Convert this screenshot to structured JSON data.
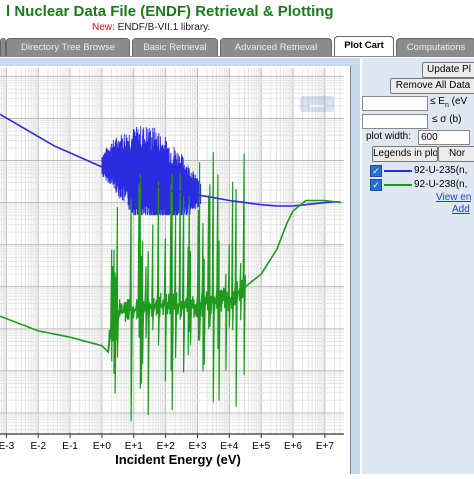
{
  "header": {
    "title": "l Nuclear Data File (ENDF) Retrieval & Plotting",
    "new_label": "New:",
    "library_text": "ENDF/B-VII.1 library."
  },
  "tabs": [
    {
      "label": "Directory Tree Browse",
      "active": false
    },
    {
      "label": "Basic Retrieval",
      "active": false
    },
    {
      "label": "Advanced Retrieval",
      "active": false
    },
    {
      "label": "Plot Cart",
      "active": true
    },
    {
      "label": "Computations",
      "active": false
    }
  ],
  "sidebar": {
    "update_button": "Update Pl",
    "remove_button": "Remove All Data",
    "energy_label": "≤ E",
    "energy_sub": "n",
    "energy_unit": "(eV",
    "sigma_label": "≤  σ (b)",
    "plot_width_label": "plot width:",
    "plot_width_value": "600",
    "legends_in_plot_label": "Legends in plot",
    "legend_mode": "Nor",
    "legend_entries": [
      {
        "label": "92-U-235(n,",
        "color": "#2b2be0",
        "checked": true
      },
      {
        "label": "92-U-238(n,",
        "color": "#1f9a1f",
        "checked": true
      }
    ],
    "view_link": "View en",
    "add_link": "Add"
  },
  "chart_data": {
    "type": "line",
    "xlabel": "Incident Energy (eV)",
    "xscale": "log",
    "x_tick_labels": [
      "E-3",
      "E-2",
      "E-1",
      "E+0",
      "E+1",
      "E+2",
      "E+3",
      "E+4",
      "E+5",
      "E+6",
      "E+7"
    ],
    "x_tick_exponents": [
      -3,
      -2,
      -1,
      0,
      1,
      2,
      3,
      4,
      5,
      6,
      7
    ],
    "xlim_exponent": [
      -3.2,
      7.6
    ],
    "ylim_exponent": [
      -5.5,
      3.2
    ],
    "grid": true,
    "series": [
      {
        "name": "92-U-235(n,",
        "color": "#2b2be0",
        "points": [
          [
            -3.2,
            2.1
          ],
          [
            -1.5,
            1.35
          ],
          [
            0.0,
            0.85
          ],
          [
            0.3,
            0.85
          ],
          [
            1.1,
            0.55
          ],
          [
            1.6,
            0.45
          ],
          [
            2.0,
            0.3
          ],
          [
            2.5,
            0.25
          ],
          [
            3.0,
            0.18
          ],
          [
            3.5,
            0.12
          ],
          [
            4.0,
            0.05
          ],
          [
            4.5,
            0.0
          ],
          [
            5.0,
            -0.05
          ],
          [
            5.5,
            -0.08
          ],
          [
            6.0,
            -0.08
          ],
          [
            6.5,
            -0.04
          ],
          [
            7.0,
            0.0
          ],
          [
            7.3,
            0.02
          ],
          [
            7.5,
            0.01
          ]
        ],
        "resonance_band": {
          "from": 0.0,
          "to": 3.1,
          "low": -0.3,
          "high": 1.9
        }
      },
      {
        "name": "92-U-238(n,",
        "color": "#1f9a1f",
        "points": [
          [
            -3.2,
            -2.7
          ],
          [
            -2.0,
            -3.05
          ],
          [
            -1.0,
            -3.2
          ],
          [
            0.0,
            -3.4
          ],
          [
            0.2,
            -3.55
          ],
          [
            0.35,
            -2.6
          ],
          [
            1.0,
            -2.55
          ],
          [
            2.0,
            -2.4
          ],
          [
            3.0,
            -2.45
          ],
          [
            3.5,
            -2.35
          ],
          [
            4.0,
            -2.3
          ],
          [
            4.5,
            -2.0
          ],
          [
            5.0,
            -1.7
          ],
          [
            5.5,
            -1.1
          ],
          [
            5.8,
            -0.5
          ],
          [
            6.0,
            -0.2
          ],
          [
            6.4,
            0.05
          ],
          [
            7.0,
            0.05
          ],
          [
            7.5,
            0.0
          ]
        ],
        "resonance_band": {
          "from": 0.2,
          "to": 4.5,
          "low": -5.2,
          "high": 1.8
        }
      }
    ]
  }
}
